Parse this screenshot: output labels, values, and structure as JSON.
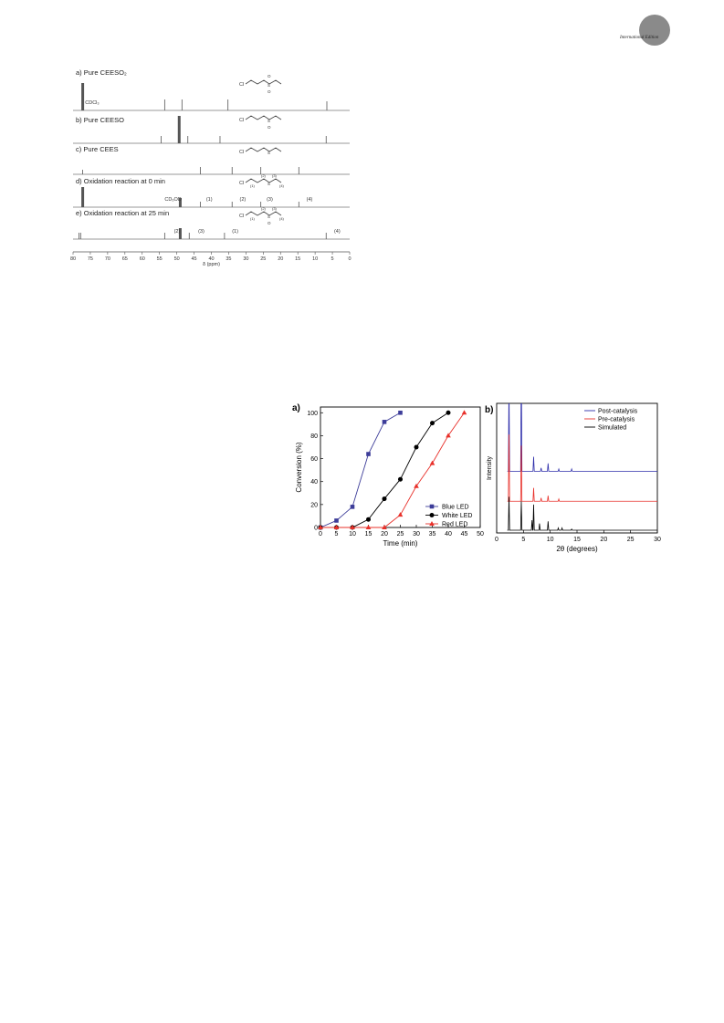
{
  "header": {
    "edition_label": "International Edition"
  },
  "nmr_figure": {
    "panels": [
      {
        "label": "a) Pure CEESO₂",
        "annotations": [
          {
            "text": "CDCl₃",
            "ppm": 76.5
          }
        ],
        "peaks": [
          {
            "ppm": 77.2,
            "h": 30,
            "w": 3
          },
          {
            "ppm": 53.5,
            "h": 12
          },
          {
            "ppm": 48.5,
            "h": 12
          },
          {
            "ppm": 35.2,
            "h": 12
          },
          {
            "ppm": 6.6,
            "h": 10
          }
        ],
        "molecule": {
          "atoms": [
            "Cl",
            "S"
          ],
          "oxygens": [
            "O",
            "O"
          ],
          "numbers": []
        }
      },
      {
        "label": "b) Pure CEESO",
        "annotations": [],
        "peaks": [
          {
            "ppm": 49.3,
            "h": 30,
            "w": 3
          },
          {
            "ppm": 54.5,
            "h": 8
          },
          {
            "ppm": 46.8,
            "h": 8
          },
          {
            "ppm": 37.5,
            "h": 8
          },
          {
            "ppm": 6.8,
            "h": 8
          }
        ],
        "molecule": {
          "atoms": [
            "Cl",
            "S"
          ],
          "oxygens": [
            "O"
          ],
          "numbers": []
        }
      },
      {
        "label": "c) Pure CEES",
        "annotations": [],
        "peaks": [
          {
            "ppm": 77.2,
            "h": 5
          },
          {
            "ppm": 43.2,
            "h": 8
          },
          {
            "ppm": 34.0,
            "h": 8
          },
          {
            "ppm": 25.7,
            "h": 8
          },
          {
            "ppm": 14.7,
            "h": 8
          }
        ],
        "molecule": {
          "atoms": [
            "Cl",
            "S"
          ],
          "oxygens": [],
          "numbers": []
        }
      },
      {
        "label": "d)  Oxidation reaction at 0 min",
        "annotations": [
          {
            "text": "CD₃OD",
            "ppm": 53.5
          },
          {
            "text": "(1)",
            "ppm": 41.5
          },
          {
            "text": "(2)",
            "ppm": 31.8
          },
          {
            "text": "(3)",
            "ppm": 24.0
          },
          {
            "text": "(4)",
            "ppm": 12.5
          }
        ],
        "peaks": [
          {
            "ppm": 77.2,
            "h": 22,
            "w": 3
          },
          {
            "ppm": 49.0,
            "h": 10,
            "w": 3
          },
          {
            "ppm": 43.2,
            "h": 6
          },
          {
            "ppm": 34.0,
            "h": 6
          },
          {
            "ppm": 25.7,
            "h": 6
          },
          {
            "ppm": 14.7,
            "h": 6
          }
        ],
        "molecule": {
          "atoms": [
            "Cl",
            "S"
          ],
          "oxygens": [],
          "numbers": [
            "(1)",
            "(2)",
            "(3)",
            "(4)"
          ]
        }
      },
      {
        "label": "e)  Oxidation reaction at 25 min",
        "annotations": [
          {
            "text": "(2)",
            "ppm": 50.8
          },
          {
            "text": "(3)",
            "ppm": 43.8
          },
          {
            "text": "(1)",
            "ppm": 34.0
          },
          {
            "text": "(4)",
            "ppm": 4.5
          }
        ],
        "peaks": [
          {
            "ppm": 78.3,
            "h": 7
          },
          {
            "ppm": 77.8,
            "h": 7
          },
          {
            "ppm": 53.5,
            "h": 7
          },
          {
            "ppm": 49.0,
            "h": 12,
            "w": 3
          },
          {
            "ppm": 46.4,
            "h": 7
          },
          {
            "ppm": 36.2,
            "h": 7
          },
          {
            "ppm": 6.8,
            "h": 7
          }
        ],
        "molecule": {
          "atoms": [
            "Cl",
            "S"
          ],
          "oxygens": [
            "O"
          ],
          "numbers": [
            "(1)",
            "(2)",
            "(3)",
            "(4)"
          ]
        }
      }
    ],
    "axis": {
      "min": 0,
      "max": 80,
      "ticks": [
        80,
        75,
        70,
        65,
        60,
        55,
        50,
        45,
        40,
        35,
        30,
        25,
        20,
        15,
        10,
        5,
        0
      ],
      "label": "δ (ppm)"
    }
  },
  "chart_data": [
    {
      "type": "line",
      "panel_label": "a)",
      "xlabel": "Time (min)",
      "ylabel": "Conversion (%)",
      "xlim": [
        0,
        50
      ],
      "ylim": [
        0,
        105
      ],
      "xticks": [
        0,
        5,
        10,
        15,
        20,
        25,
        30,
        35,
        40,
        45,
        50
      ],
      "yticks": [
        0,
        20,
        40,
        60,
        80,
        100
      ],
      "legend_position": "bottom-right",
      "series": [
        {
          "name": "Blue LED",
          "color": "#3d3d99",
          "marker": "square",
          "x": [
            0,
            5,
            10,
            15,
            20,
            25
          ],
          "y": [
            0,
            6,
            18,
            64,
            92,
            100
          ]
        },
        {
          "name": "White LED",
          "color": "#000000",
          "marker": "circle",
          "x": [
            0,
            5,
            10,
            15,
            20,
            25,
            30,
            35,
            40
          ],
          "y": [
            0,
            0,
            0,
            7,
            25,
            42,
            70,
            91,
            100
          ]
        },
        {
          "name": "Red LED",
          "color": "#e8302a",
          "marker": "triangle",
          "x": [
            0,
            5,
            10,
            15,
            20,
            25,
            30,
            35,
            40,
            45
          ],
          "y": [
            0,
            0,
            0,
            0,
            0,
            11,
            36,
            56,
            80,
            100
          ]
        }
      ]
    },
    {
      "type": "line",
      "panel_label": "b)",
      "xlabel": "2θ (degrees)",
      "ylabel": "Intensity",
      "xlim": [
        0,
        30
      ],
      "xticks": [
        0,
        5,
        10,
        15,
        20,
        25,
        30
      ],
      "legend_position": "top-right",
      "series": [
        {
          "name": "Post-catalysis",
          "color": "#2e2eaa",
          "baseline": 53,
          "peaks": [
            [
              2.3,
              80
            ],
            [
              4.6,
              100
            ],
            [
              6.9,
              13
            ],
            [
              8.3,
              3
            ],
            [
              9.6,
              7
            ],
            [
              11.6,
              2
            ],
            [
              14.0,
              2
            ]
          ]
        },
        {
          "name": "Pre-catalysis",
          "color": "#e8302a",
          "baseline": 26,
          "peaks": [
            [
              2.3,
              60
            ],
            [
              4.6,
              50
            ],
            [
              6.9,
              12
            ],
            [
              8.3,
              3
            ],
            [
              9.6,
              5
            ],
            [
              11.6,
              2
            ]
          ]
        },
        {
          "name": "Simulated",
          "color": "#000000",
          "baseline": 0,
          "peaks": [
            [
              2.3,
              30
            ],
            [
              4.6,
              26
            ],
            [
              6.6,
              9
            ],
            [
              6.9,
              23
            ],
            [
              8.0,
              6
            ],
            [
              9.6,
              8
            ],
            [
              11.5,
              2
            ],
            [
              12.2,
              2
            ],
            [
              14.0,
              1
            ]
          ]
        }
      ]
    }
  ]
}
